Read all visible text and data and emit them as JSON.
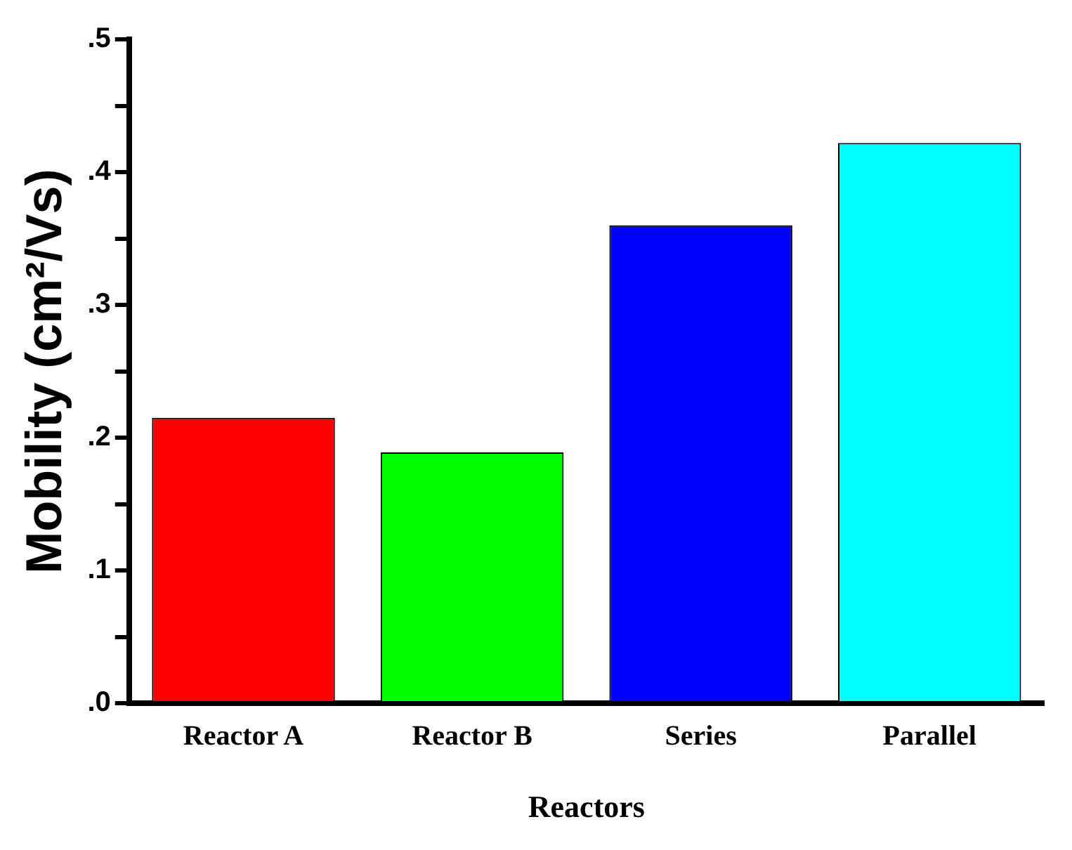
{
  "chart_data": {
    "type": "bar",
    "xlabel": "Reactors",
    "ylabel": "Mobility (cm²/Vs)",
    "categories": [
      "Reactor A",
      "Reactor B",
      "Series",
      "Parallel"
    ],
    "values": [
      0.215,
      0.189,
      0.36,
      0.422
    ],
    "colors": [
      "#ff0000",
      "#00ff00",
      "#0000ff",
      "#00ffff"
    ],
    "ylim": [
      0,
      0.5
    ],
    "yticks": [
      {
        "value": 0,
        "label": ".0"
      },
      {
        "value": 0.05,
        "label": null
      },
      {
        "value": 0.1,
        "label": ".1"
      },
      {
        "value": 0.15,
        "label": null
      },
      {
        "value": 0.2,
        "label": ".2"
      },
      {
        "value": 0.25,
        "label": null
      },
      {
        "value": 0.3,
        "label": ".3"
      },
      {
        "value": 0.35,
        "label": null
      },
      {
        "value": 0.4,
        "label": ".4"
      },
      {
        "value": 0.45,
        "label": null
      },
      {
        "value": 0.5,
        "label": ".5"
      }
    ],
    "grid": false,
    "legend": false
  }
}
